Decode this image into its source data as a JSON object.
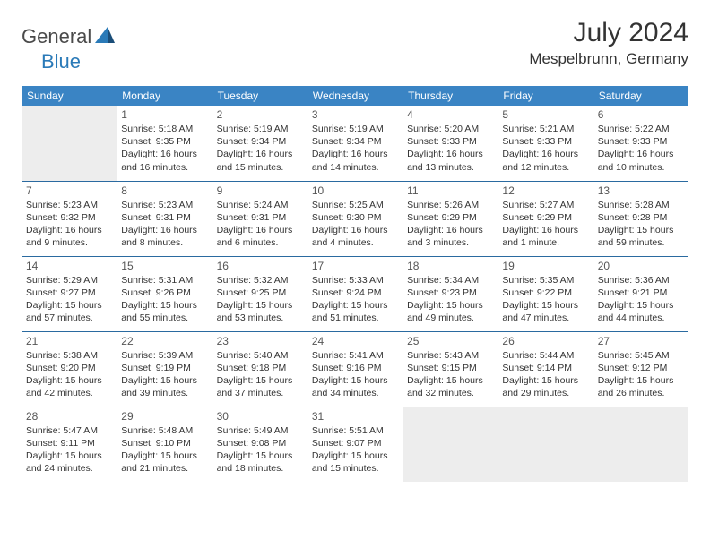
{
  "logo": {
    "general": "General",
    "blue": "Blue"
  },
  "title": "July 2024",
  "location": "Mespelbrunn, Germany",
  "header_row_bg": "#3a84c4",
  "header_row_fg": "#ffffff",
  "divider_color": "#2a6aa0",
  "empty_bg": "#ededed",
  "text_color": "#333333",
  "font_family": "Arial",
  "daynum_fontsize": 12,
  "dayinfo_fontsize": 10.5,
  "weekdays": [
    "Sunday",
    "Monday",
    "Tuesday",
    "Wednesday",
    "Thursday",
    "Friday",
    "Saturday"
  ],
  "weeks": [
    [
      null,
      {
        "n": "1",
        "sr": "5:18 AM",
        "ss": "9:35 PM",
        "dl": "16 hours and 16 minutes."
      },
      {
        "n": "2",
        "sr": "5:19 AM",
        "ss": "9:34 PM",
        "dl": "16 hours and 15 minutes."
      },
      {
        "n": "3",
        "sr": "5:19 AM",
        "ss": "9:34 PM",
        "dl": "16 hours and 14 minutes."
      },
      {
        "n": "4",
        "sr": "5:20 AM",
        "ss": "9:33 PM",
        "dl": "16 hours and 13 minutes."
      },
      {
        "n": "5",
        "sr": "5:21 AM",
        "ss": "9:33 PM",
        "dl": "16 hours and 12 minutes."
      },
      {
        "n": "6",
        "sr": "5:22 AM",
        "ss": "9:33 PM",
        "dl": "16 hours and 10 minutes."
      }
    ],
    [
      {
        "n": "7",
        "sr": "5:23 AM",
        "ss": "9:32 PM",
        "dl": "16 hours and 9 minutes."
      },
      {
        "n": "8",
        "sr": "5:23 AM",
        "ss": "9:31 PM",
        "dl": "16 hours and 8 minutes."
      },
      {
        "n": "9",
        "sr": "5:24 AM",
        "ss": "9:31 PM",
        "dl": "16 hours and 6 minutes."
      },
      {
        "n": "10",
        "sr": "5:25 AM",
        "ss": "9:30 PM",
        "dl": "16 hours and 4 minutes."
      },
      {
        "n": "11",
        "sr": "5:26 AM",
        "ss": "9:29 PM",
        "dl": "16 hours and 3 minutes."
      },
      {
        "n": "12",
        "sr": "5:27 AM",
        "ss": "9:29 PM",
        "dl": "16 hours and 1 minute."
      },
      {
        "n": "13",
        "sr": "5:28 AM",
        "ss": "9:28 PM",
        "dl": "15 hours and 59 minutes."
      }
    ],
    [
      {
        "n": "14",
        "sr": "5:29 AM",
        "ss": "9:27 PM",
        "dl": "15 hours and 57 minutes."
      },
      {
        "n": "15",
        "sr": "5:31 AM",
        "ss": "9:26 PM",
        "dl": "15 hours and 55 minutes."
      },
      {
        "n": "16",
        "sr": "5:32 AM",
        "ss": "9:25 PM",
        "dl": "15 hours and 53 minutes."
      },
      {
        "n": "17",
        "sr": "5:33 AM",
        "ss": "9:24 PM",
        "dl": "15 hours and 51 minutes."
      },
      {
        "n": "18",
        "sr": "5:34 AM",
        "ss": "9:23 PM",
        "dl": "15 hours and 49 minutes."
      },
      {
        "n": "19",
        "sr": "5:35 AM",
        "ss": "9:22 PM",
        "dl": "15 hours and 47 minutes."
      },
      {
        "n": "20",
        "sr": "5:36 AM",
        "ss": "9:21 PM",
        "dl": "15 hours and 44 minutes."
      }
    ],
    [
      {
        "n": "21",
        "sr": "5:38 AM",
        "ss": "9:20 PM",
        "dl": "15 hours and 42 minutes."
      },
      {
        "n": "22",
        "sr": "5:39 AM",
        "ss": "9:19 PM",
        "dl": "15 hours and 39 minutes."
      },
      {
        "n": "23",
        "sr": "5:40 AM",
        "ss": "9:18 PM",
        "dl": "15 hours and 37 minutes."
      },
      {
        "n": "24",
        "sr": "5:41 AM",
        "ss": "9:16 PM",
        "dl": "15 hours and 34 minutes."
      },
      {
        "n": "25",
        "sr": "5:43 AM",
        "ss": "9:15 PM",
        "dl": "15 hours and 32 minutes."
      },
      {
        "n": "26",
        "sr": "5:44 AM",
        "ss": "9:14 PM",
        "dl": "15 hours and 29 minutes."
      },
      {
        "n": "27",
        "sr": "5:45 AM",
        "ss": "9:12 PM",
        "dl": "15 hours and 26 minutes."
      }
    ],
    [
      {
        "n": "28",
        "sr": "5:47 AM",
        "ss": "9:11 PM",
        "dl": "15 hours and 24 minutes."
      },
      {
        "n": "29",
        "sr": "5:48 AM",
        "ss": "9:10 PM",
        "dl": "15 hours and 21 minutes."
      },
      {
        "n": "30",
        "sr": "5:49 AM",
        "ss": "9:08 PM",
        "dl": "15 hours and 18 minutes."
      },
      {
        "n": "31",
        "sr": "5:51 AM",
        "ss": "9:07 PM",
        "dl": "15 hours and 15 minutes."
      },
      null,
      null,
      null
    ]
  ]
}
